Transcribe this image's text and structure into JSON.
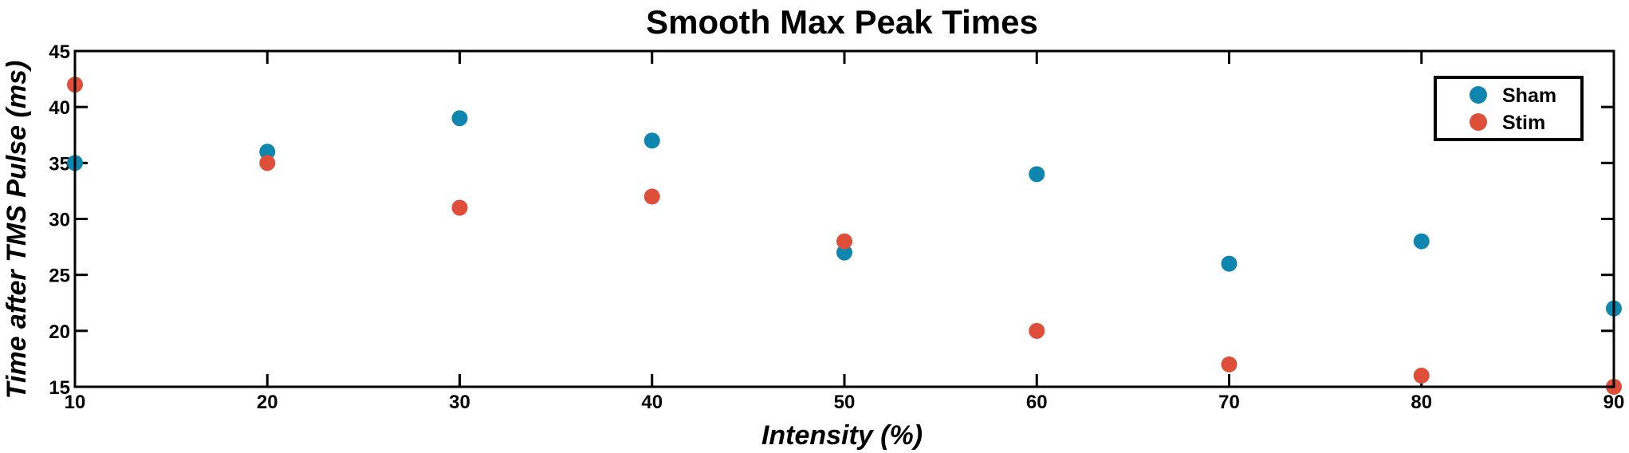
{
  "chart_data": {
    "type": "scatter",
    "title": "Smooth Max Peak Times",
    "xlabel": "Intensity (%)",
    "ylabel": "Time after TMS Pulse (ms)",
    "xlim": [
      10,
      90
    ],
    "ylim": [
      15,
      45
    ],
    "xticks": [
      10,
      20,
      30,
      40,
      50,
      60,
      70,
      80,
      90
    ],
    "yticks": [
      15,
      20,
      25,
      30,
      35,
      40,
      45
    ],
    "grid": false,
    "legend_position": "top-right",
    "x": [
      10,
      20,
      30,
      40,
      50,
      60,
      70,
      80,
      90
    ],
    "series": [
      {
        "name": "Sham",
        "color": "#0f86b0",
        "values": [
          35,
          36,
          39,
          37,
          27,
          34,
          26,
          28,
          22
        ]
      },
      {
        "name": "Stim",
        "color": "#de4e39",
        "values": [
          42,
          35,
          31,
          32,
          28,
          20,
          17,
          16,
          15
        ]
      }
    ]
  }
}
